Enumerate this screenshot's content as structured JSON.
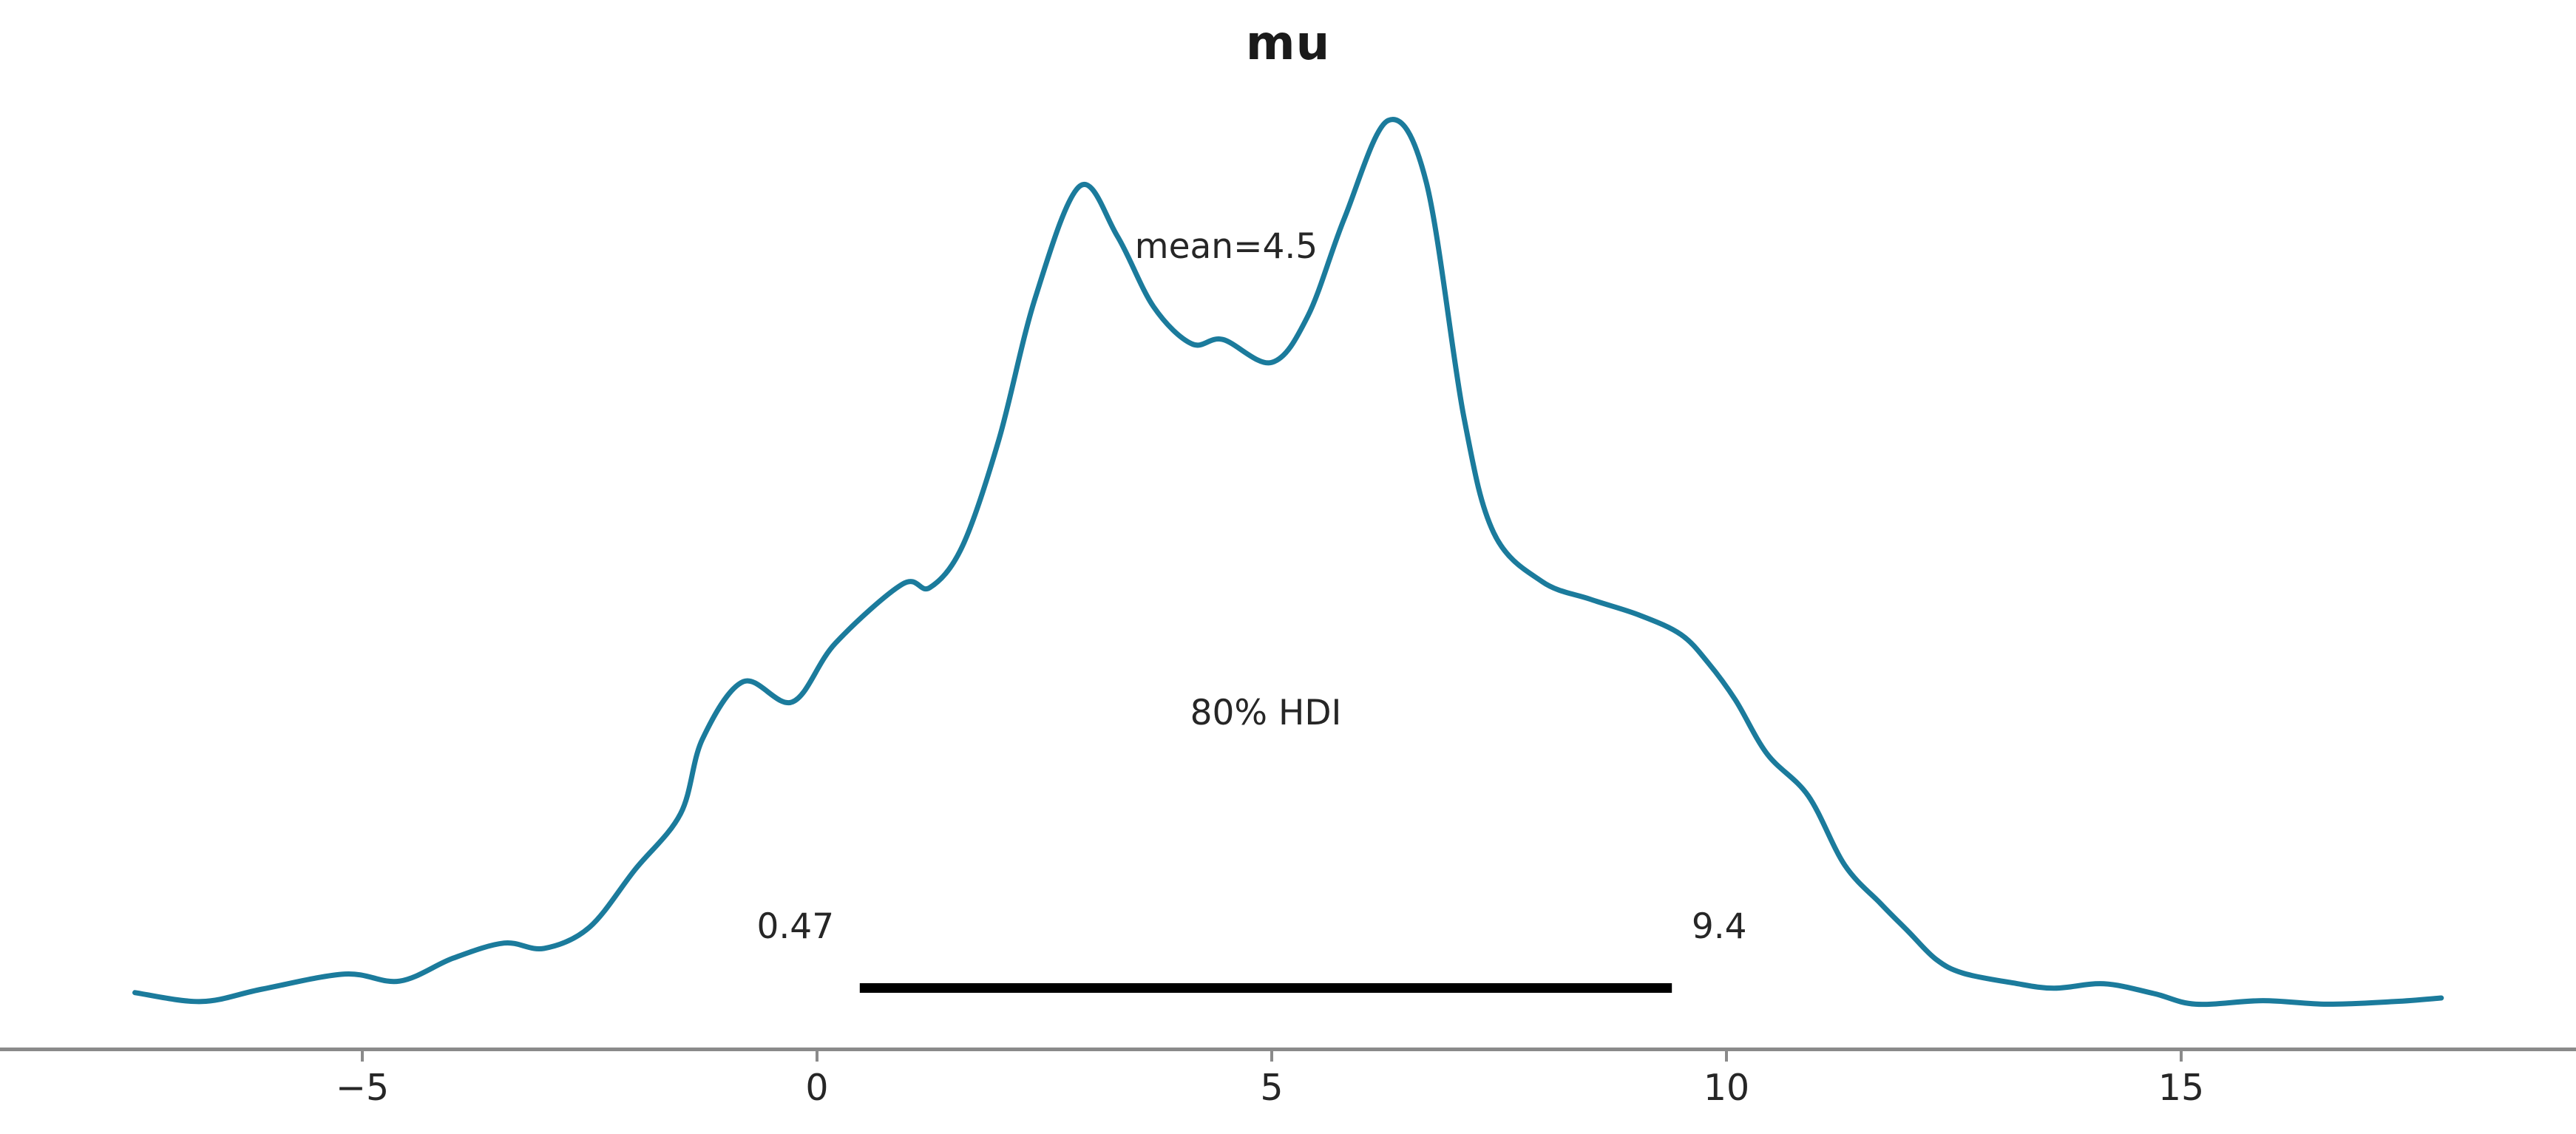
{
  "figure": {
    "title": "mu"
  },
  "annotations": {
    "mean_label": "mean=4.5",
    "hdi_label": "80% HDI",
    "hdi_lower_label": "0.47",
    "hdi_upper_label": "9.4"
  },
  "x_axis": {
    "ticks": [
      -5,
      0,
      5,
      10,
      15
    ],
    "tick_labels": [
      "−5",
      "0",
      "5",
      "10",
      "15"
    ]
  },
  "colors": {
    "curve": "#1b7b9c",
    "hdi_bar": "#000000",
    "spine": "#8a8a8a",
    "tick_label": "#262626",
    "annotation_text": "#262626",
    "title_text": "#1a1a1a",
    "background": "#ffffff"
  },
  "chart_data": {
    "type": "area",
    "subtype": "kde-posterior-density",
    "title": "mu",
    "xlabel": "",
    "ylabel": "",
    "xlim": [
      -7.5,
      17.9
    ],
    "grid": false,
    "legend": false,
    "x": [
      -7.5,
      -6.77,
      -6.1,
      -5.19,
      -4.59,
      -4.0,
      -3.44,
      -3.0,
      -2.5,
      -2.0,
      -1.5,
      -1.26,
      -0.81,
      -0.27,
      0.2,
      0.94,
      1.24,
      1.6,
      2.0,
      2.4,
      2.89,
      3.3,
      3.7,
      4.12,
      4.46,
      5.0,
      5.4,
      5.8,
      6.28,
      6.7,
      7.11,
      7.44,
      7.97,
      8.5,
      9.04,
      9.5,
      9.8,
      10.1,
      10.45,
      10.9,
      11.3,
      11.7,
      12.0,
      12.3,
      12.6,
      13.15,
      13.6,
      14.15,
      14.7,
      15.16,
      15.9,
      16.6,
      17.35,
      17.86
    ],
    "density": [
      0.016,
      0.006,
      0.02,
      0.037,
      0.029,
      0.055,
      0.072,
      0.066,
      0.09,
      0.155,
      0.218,
      0.302,
      0.367,
      0.344,
      0.41,
      0.477,
      0.473,
      0.52,
      0.64,
      0.8,
      0.926,
      0.87,
      0.79,
      0.748,
      0.753,
      0.727,
      0.78,
      0.89,
      1.0,
      0.93,
      0.667,
      0.535,
      0.48,
      0.46,
      0.442,
      0.42,
      0.388,
      0.346,
      0.285,
      0.238,
      0.16,
      0.116,
      0.085,
      0.054,
      0.038,
      0.027,
      0.021,
      0.026,
      0.015,
      0.003,
      0.007,
      0.003,
      0.006,
      0.01
    ],
    "stats": {
      "mean": 4.5,
      "hdi_prob": 0.8,
      "hdi_lower": 0.47,
      "hdi_upper": 9.4
    }
  }
}
